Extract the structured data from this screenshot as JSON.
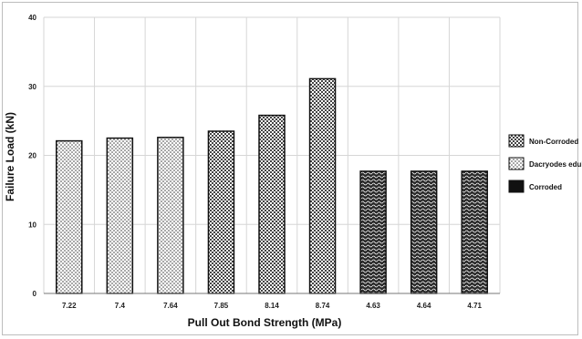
{
  "chart_data": {
    "type": "bar",
    "xlabel": "Pull Out Bond Strength (MPa)",
    "ylabel": "Failure Load (kN)",
    "ylim": [
      0,
      40
    ],
    "yticks": [
      0,
      10,
      20,
      30,
      40
    ],
    "grid": true,
    "legend_position": "right",
    "categories": [
      "7.22",
      "7.4",
      "7.64",
      "7.85",
      "8.14",
      "8.74",
      "4.63",
      "4.64",
      "4.71"
    ],
    "values": [
      22.1,
      22.5,
      22.6,
      23.5,
      25.8,
      31.1,
      17.7,
      17.7,
      17.7
    ],
    "bar_patterns": [
      "dots",
      "dots",
      "dots",
      "check",
      "check",
      "check",
      "wave",
      "wave",
      "wave"
    ],
    "legend": [
      {
        "label": "Non-Corroded",
        "pattern": "check"
      },
      {
        "label": "Dacryodes edulis",
        "pattern": "dots"
      },
      {
        "label": "Corroded",
        "pattern": "solid"
      }
    ]
  }
}
